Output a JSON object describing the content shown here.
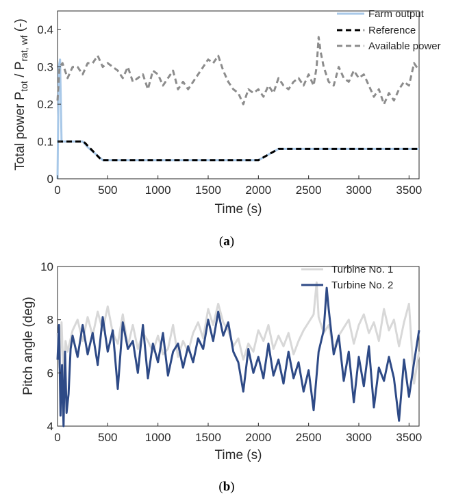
{
  "chart_data": [
    {
      "type": "line",
      "panel_label": "(a)",
      "xlabel": "Time (s)",
      "ylabel": {
        "text": "Total power P",
        "sub1": "tot",
        "mid": " / P",
        "sub2": "rat, wf",
        "unit": " (-)"
      },
      "xlim": [
        0,
        3600
      ],
      "ylim": [
        0,
        0.45
      ],
      "xticks": [
        0,
        500,
        1000,
        1500,
        2000,
        2500,
        3000,
        3500
      ],
      "yticks": [
        0,
        0.1,
        0.2,
        0.3,
        0.4
      ],
      "ytick_labels": [
        "0",
        "0.1",
        "0.2",
        "0.3",
        "0.4"
      ],
      "grid": false,
      "legend_position": "top-right",
      "series": [
        {
          "name": "Farm output",
          "color": "#a8c8e8",
          "style": "solid",
          "x": [
            0,
            12,
            25,
            40,
            60,
            100,
            250,
            300,
            450,
            500,
            1000,
            1500,
            2000,
            2200,
            2500,
            3000,
            3600
          ],
          "y": [
            0,
            0.3,
            0.32,
            0.1,
            0.1,
            0.1,
            0.1,
            0.085,
            0.05,
            0.05,
            0.05,
            0.05,
            0.05,
            0.08,
            0.08,
            0.08,
            0.08
          ]
        },
        {
          "name": "Reference",
          "color": "#000000",
          "style": "dash",
          "x": [
            0,
            260,
            440,
            2000,
            2200,
            3600
          ],
          "y": [
            0.1,
            0.1,
            0.05,
            0.05,
            0.08,
            0.08
          ]
        },
        {
          "name": "Available power",
          "color": "#8c8c8c",
          "style": "dash",
          "x": [
            0,
            20,
            50,
            100,
            150,
            200,
            250,
            300,
            350,
            400,
            450,
            500,
            550,
            600,
            650,
            700,
            750,
            800,
            850,
            900,
            950,
            1000,
            1050,
            1100,
            1150,
            1200,
            1250,
            1300,
            1350,
            1400,
            1450,
            1500,
            1550,
            1600,
            1650,
            1700,
            1750,
            1800,
            1850,
            1900,
            1950,
            2000,
            2050,
            2100,
            2150,
            2200,
            2250,
            2300,
            2350,
            2400,
            2450,
            2500,
            2550,
            2580,
            2600,
            2620,
            2650,
            2700,
            2750,
            2800,
            2850,
            2900,
            2950,
            3000,
            3050,
            3100,
            3150,
            3200,
            3250,
            3300,
            3350,
            3400,
            3450,
            3500,
            3550,
            3600
          ],
          "y": [
            0.21,
            0.3,
            0.31,
            0.27,
            0.3,
            0.3,
            0.28,
            0.31,
            0.31,
            0.33,
            0.3,
            0.31,
            0.3,
            0.29,
            0.27,
            0.3,
            0.26,
            0.27,
            0.28,
            0.24,
            0.29,
            0.28,
            0.25,
            0.27,
            0.29,
            0.24,
            0.26,
            0.24,
            0.26,
            0.28,
            0.3,
            0.32,
            0.31,
            0.33,
            0.29,
            0.26,
            0.24,
            0.23,
            0.2,
            0.24,
            0.23,
            0.24,
            0.22,
            0.25,
            0.23,
            0.27,
            0.25,
            0.24,
            0.26,
            0.27,
            0.25,
            0.28,
            0.25,
            0.3,
            0.38,
            0.34,
            0.3,
            0.26,
            0.25,
            0.3,
            0.27,
            0.26,
            0.29,
            0.27,
            0.28,
            0.25,
            0.22,
            0.24,
            0.2,
            0.23,
            0.21,
            0.24,
            0.26,
            0.25,
            0.31,
            0.29
          ]
        }
      ]
    },
    {
      "type": "line",
      "panel_label": "(b)",
      "xlabel": "Time (s)",
      "ylabel": "Pitch angle (deg)",
      "xlim": [
        0,
        3600
      ],
      "ylim": [
        4,
        10
      ],
      "xticks": [
        0,
        500,
        1000,
        1500,
        2000,
        2500,
        3000,
        3500
      ],
      "yticks": [
        4,
        6,
        8,
        10
      ],
      "grid": false,
      "legend_position": "top-right",
      "series": [
        {
          "name": "Turbine No. 1",
          "color": "#d8d8d8",
          "style": "solid",
          "x": [
            0,
            20,
            40,
            60,
            80,
            100,
            150,
            200,
            250,
            300,
            350,
            400,
            450,
            500,
            550,
            600,
            650,
            700,
            750,
            800,
            850,
            900,
            950,
            1000,
            1050,
            1100,
            1150,
            1200,
            1250,
            1300,
            1350,
            1400,
            1450,
            1500,
            1550,
            1600,
            1650,
            1700,
            1750,
            1800,
            1850,
            1900,
            1950,
            2000,
            2050,
            2100,
            2150,
            2200,
            2250,
            2300,
            2350,
            2400,
            2450,
            2500,
            2550,
            2580,
            2600,
            2650,
            2700,
            2750,
            2800,
            2850,
            2900,
            2950,
            3000,
            3050,
            3100,
            3150,
            3200,
            3250,
            3300,
            3350,
            3400,
            3450,
            3500,
            3550,
            3600
          ],
          "y": [
            7.5,
            6.2,
            7.9,
            5.8,
            7.2,
            6.8,
            7.6,
            8.0,
            7.2,
            8.1,
            7.4,
            8.3,
            7.6,
            8.5,
            7.5,
            7.1,
            8.2,
            7.0,
            7.8,
            6.9,
            7.5,
            7.2,
            6.8,
            7.4,
            6.7,
            6.9,
            7.8,
            6.6,
            7.2,
            6.8,
            7.5,
            7.9,
            7.3,
            8.4,
            7.8,
            8.6,
            7.9,
            7.6,
            7.0,
            7.3,
            6.5,
            7.1,
            6.8,
            7.6,
            7.2,
            7.8,
            6.9,
            7.4,
            7.0,
            7.5,
            6.7,
            7.2,
            7.6,
            7.9,
            8.2,
            9.4,
            8.1,
            7.5,
            7.8,
            6.9,
            7.4,
            7.7,
            8.0,
            7.1,
            7.8,
            8.2,
            7.5,
            7.9,
            7.2,
            8.4,
            7.6,
            8.0,
            7.0,
            7.9,
            8.6,
            5.6,
            6.8
          ]
        },
        {
          "name": "Turbine No. 2",
          "color": "#2e4a86",
          "style": "solid",
          "x": [
            0,
            15,
            30,
            45,
            60,
            75,
            90,
            110,
            130,
            150,
            200,
            250,
            300,
            350,
            400,
            450,
            500,
            550,
            600,
            650,
            700,
            750,
            800,
            850,
            900,
            950,
            1000,
            1050,
            1100,
            1150,
            1200,
            1250,
            1300,
            1350,
            1400,
            1450,
            1500,
            1550,
            1600,
            1650,
            1700,
            1750,
            1800,
            1850,
            1900,
            1950,
            2000,
            2050,
            2100,
            2150,
            2200,
            2250,
            2300,
            2350,
            2400,
            2450,
            2500,
            2550,
            2600,
            2650,
            2680,
            2700,
            2750,
            2800,
            2850,
            2900,
            2950,
            3000,
            3050,
            3100,
            3150,
            3200,
            3250,
            3300,
            3350,
            3400,
            3450,
            3500,
            3550,
            3600
          ],
          "y": [
            6.5,
            7.8,
            4.4,
            6.3,
            4.0,
            6.8,
            4.5,
            5.2,
            6.9,
            7.4,
            6.6,
            7.8,
            6.7,
            7.5,
            6.3,
            8.1,
            6.8,
            7.6,
            5.4,
            7.9,
            6.9,
            7.2,
            6.0,
            7.8,
            5.8,
            7.1,
            6.4,
            7.5,
            5.9,
            6.8,
            7.1,
            6.2,
            7.0,
            6.4,
            7.3,
            6.9,
            8.0,
            7.2,
            8.3,
            7.4,
            7.9,
            6.8,
            6.4,
            5.3,
            6.9,
            6.0,
            6.6,
            5.8,
            7.1,
            5.9,
            6.5,
            5.6,
            6.8,
            5.8,
            6.4,
            5.3,
            6.1,
            4.6,
            6.8,
            7.6,
            9.2,
            8.4,
            6.7,
            7.4,
            5.7,
            6.8,
            4.9,
            6.6,
            5.5,
            7.0,
            4.7,
            6.2,
            5.7,
            6.6,
            5.8,
            4.2,
            6.5,
            5.1,
            6.4,
            7.6
          ]
        }
      ]
    }
  ]
}
